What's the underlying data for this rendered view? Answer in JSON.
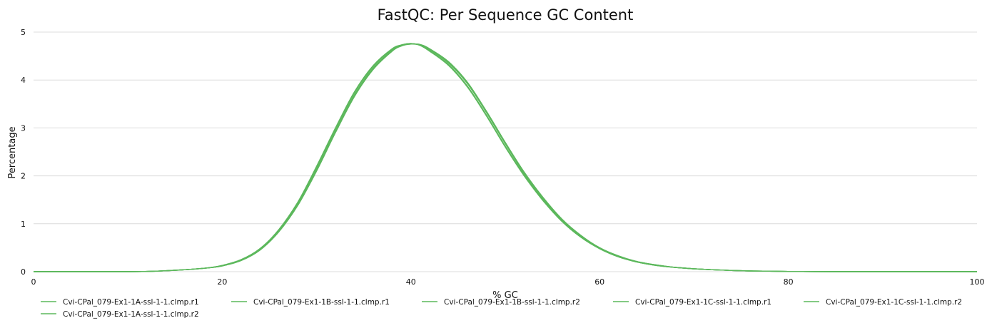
{
  "chart_data": {
    "type": "line",
    "title": "FastQC: Per Sequence GC Content",
    "xlabel": "% GC",
    "ylabel": "Percentage",
    "xlim": [
      0,
      100
    ],
    "ylim": [
      0,
      5
    ],
    "xticks": [
      0,
      20,
      40,
      60,
      80,
      100
    ],
    "yticks": [
      0,
      1,
      2,
      3,
      4,
      5
    ],
    "grid": true,
    "legend_position": "bottom",
    "x": [
      0,
      10,
      14,
      18,
      20,
      22,
      24,
      26,
      28,
      30,
      32,
      34,
      36,
      38,
      39,
      40,
      41,
      42,
      44,
      46,
      48,
      50,
      52,
      54,
      56,
      58,
      60,
      62,
      64,
      66,
      68,
      70,
      72,
      74,
      76,
      78,
      80,
      85,
      90,
      100
    ],
    "series": [
      {
        "name": "Cvi-CPal_079-Ex1-1A-ssl-1-1.clmp.r1",
        "color": "#5cb85c",
        "values": [
          0,
          0,
          0.02,
          0.07,
          0.13,
          0.25,
          0.48,
          0.88,
          1.45,
          2.2,
          3.0,
          3.75,
          4.3,
          4.65,
          4.73,
          4.76,
          4.72,
          4.6,
          4.3,
          3.85,
          3.25,
          2.6,
          2.0,
          1.48,
          1.05,
          0.72,
          0.48,
          0.31,
          0.2,
          0.13,
          0.09,
          0.06,
          0.04,
          0.025,
          0.015,
          0.01,
          0.005,
          0,
          0,
          0
        ]
      },
      {
        "name": "Cvi-CPal_079-Ex1-1B-ssl-1-1.clmp.r1",
        "color": "#5cb85c",
        "values": [
          0,
          0,
          0.02,
          0.07,
          0.12,
          0.23,
          0.45,
          0.83,
          1.38,
          2.1,
          2.9,
          3.65,
          4.22,
          4.6,
          4.71,
          4.75,
          4.74,
          4.65,
          4.38,
          3.95,
          3.35,
          2.7,
          2.08,
          1.55,
          1.1,
          0.76,
          0.5,
          0.33,
          0.21,
          0.14,
          0.09,
          0.06,
          0.04,
          0.025,
          0.015,
          0.01,
          0.005,
          0,
          0,
          0
        ]
      },
      {
        "name": "Cvi-CPal_079-Ex1-1B-ssl-1-1.clmp.r2",
        "color": "#5cb85c",
        "values": [
          0,
          0,
          0.02,
          0.07,
          0.12,
          0.24,
          0.46,
          0.85,
          1.41,
          2.14,
          2.94,
          3.69,
          4.25,
          4.62,
          4.72,
          4.75,
          4.73,
          4.63,
          4.35,
          3.92,
          3.32,
          2.67,
          2.05,
          1.52,
          1.08,
          0.74,
          0.49,
          0.32,
          0.21,
          0.14,
          0.09,
          0.06,
          0.04,
          0.025,
          0.015,
          0.01,
          0.005,
          0,
          0,
          0
        ]
      },
      {
        "name": "Cvi-CPal_079-Ex1-1C-ssl-1-1.clmp.r1",
        "color": "#5cb85c",
        "values": [
          0,
          0,
          0.02,
          0.07,
          0.13,
          0.25,
          0.47,
          0.87,
          1.44,
          2.18,
          2.98,
          3.73,
          4.28,
          4.64,
          4.73,
          4.76,
          4.72,
          4.61,
          4.32,
          3.87,
          3.27,
          2.62,
          2.02,
          1.5,
          1.06,
          0.73,
          0.48,
          0.31,
          0.2,
          0.13,
          0.09,
          0.06,
          0.04,
          0.025,
          0.015,
          0.01,
          0.005,
          0,
          0,
          0
        ]
      },
      {
        "name": "Cvi-CPal_079-Ex1-1C-ssl-1-1.clmp.r2",
        "color": "#5cb85c",
        "values": [
          0,
          0,
          0.02,
          0.07,
          0.12,
          0.24,
          0.46,
          0.84,
          1.4,
          2.12,
          2.92,
          3.67,
          4.24,
          4.61,
          4.72,
          4.75,
          4.74,
          4.64,
          4.36,
          3.93,
          3.33,
          2.68,
          2.06,
          1.53,
          1.09,
          0.75,
          0.5,
          0.32,
          0.21,
          0.14,
          0.09,
          0.06,
          0.04,
          0.025,
          0.015,
          0.01,
          0.005,
          0,
          0,
          0
        ]
      },
      {
        "name": "Cvi-CPal_079-Ex1-1A-ssl-1-1.clmp.r2",
        "color": "#5cb85c",
        "values": [
          0,
          0,
          0.02,
          0.07,
          0.13,
          0.25,
          0.48,
          0.87,
          1.44,
          2.19,
          2.99,
          3.74,
          4.29,
          4.65,
          4.73,
          4.76,
          4.72,
          4.6,
          4.31,
          3.86,
          3.26,
          2.61,
          2.01,
          1.49,
          1.05,
          0.72,
          0.48,
          0.31,
          0.2,
          0.13,
          0.09,
          0.06,
          0.04,
          0.025,
          0.015,
          0.01,
          0.005,
          0,
          0,
          0
        ]
      }
    ]
  }
}
